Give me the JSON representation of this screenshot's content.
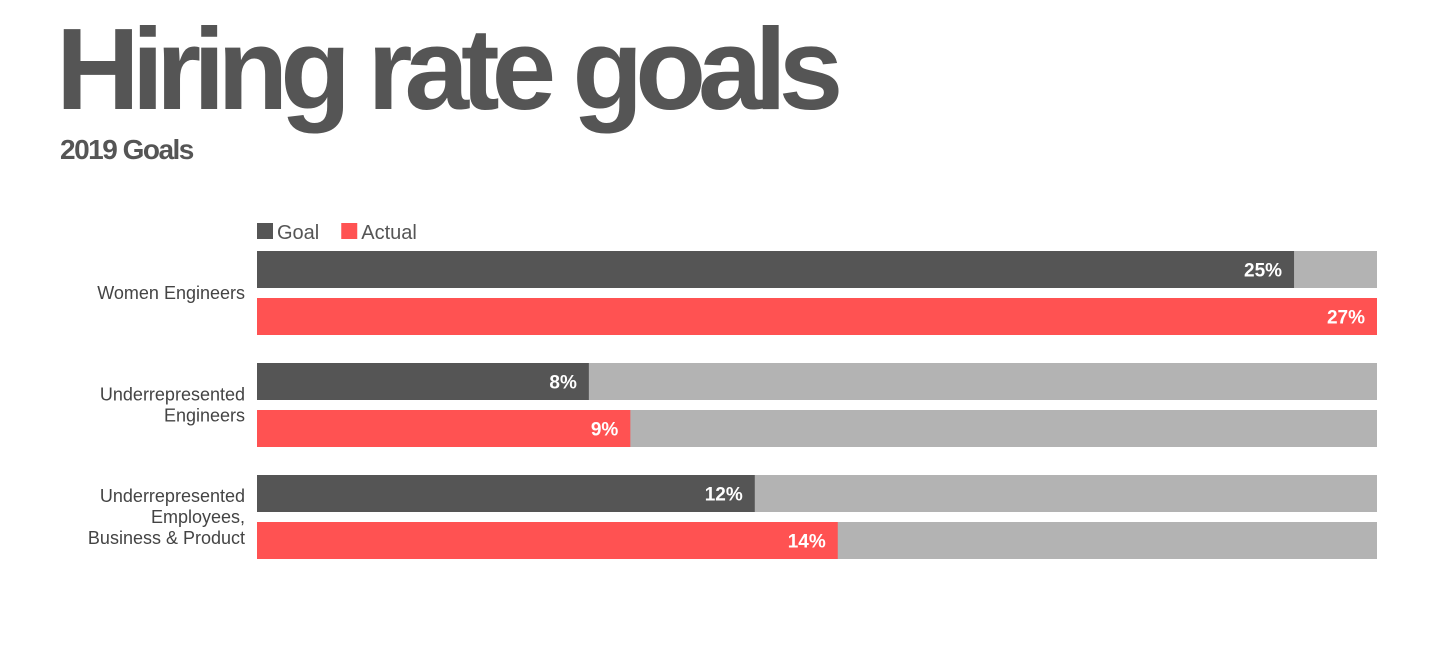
{
  "title": "Hiring rate goals",
  "subtitle": "2019 Goals",
  "chart_data": {
    "type": "bar",
    "orientation": "horizontal",
    "title": "Hiring rate goals",
    "subtitle": "2019 Goals",
    "categories": [
      [
        "Women Engineers"
      ],
      [
        "Underrepresented",
        "Engineers"
      ],
      [
        "Underrepresented",
        "Employees,",
        "Business & Product"
      ]
    ],
    "series": [
      {
        "name": "Goal",
        "color": "#555555",
        "values": [
          25,
          8,
          12
        ],
        "labels": [
          "25%",
          "8%",
          "12%"
        ]
      },
      {
        "name": "Actual",
        "color": "#ff5252",
        "values": [
          27,
          9,
          14
        ],
        "labels": [
          "27%",
          "9%",
          "14%"
        ]
      }
    ],
    "xlim": [
      0,
      27
    ],
    "track_color": "#b3b3b3",
    "legend": "top-left",
    "grid": false
  }
}
